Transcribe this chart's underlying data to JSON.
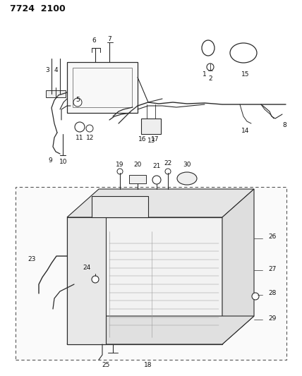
{
  "title": "7724  2100",
  "bg_color": "#ffffff",
  "line_color": "#2a2a2a",
  "label_color": "#111111",
  "fig_width": 4.28,
  "fig_height": 5.33,
  "dpi": 100
}
